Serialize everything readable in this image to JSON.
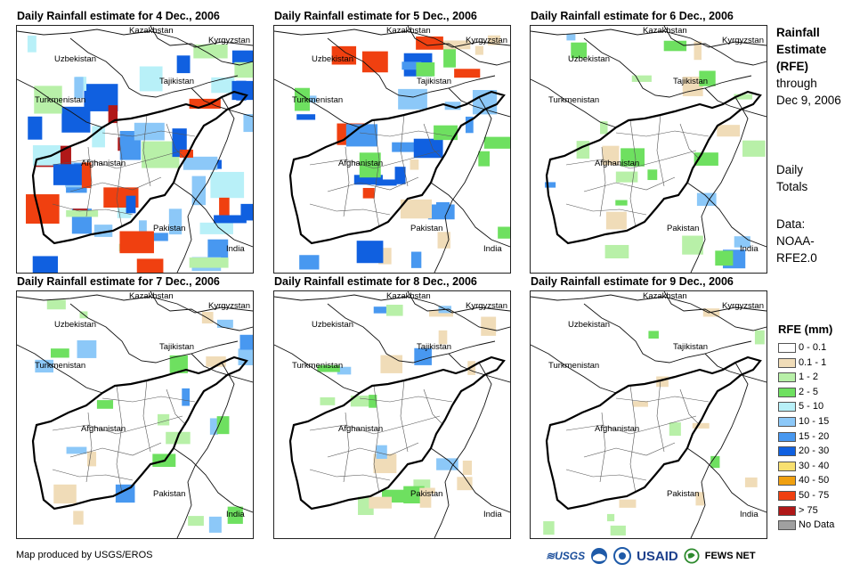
{
  "panels": [
    {
      "title": "Daily Rainfall estimate for 4 Dec., 2006",
      "intensity": 3
    },
    {
      "title": "Daily Rainfall estimate for 5 Dec., 2006",
      "intensity": 2
    },
    {
      "title": "Daily Rainfall estimate for 6 Dec., 2006",
      "intensity": 1
    },
    {
      "title": "Daily Rainfall estimate for 7 Dec., 2006",
      "intensity": 1
    },
    {
      "title": "Daily Rainfall estimate for 8 Dec., 2006",
      "intensity": 1
    },
    {
      "title": "Daily Rainfall estimate for 9 Dec., 2006",
      "intensity": 0
    }
  ],
  "map_labels": {
    "kazakhstan": "Kazakhstan",
    "kyrgyzstan": "Kyrgyzstan",
    "uzbekistan": "Uzbekistan",
    "tajikistan": "Tajikistan",
    "turkmenistan": "Turkmenistan",
    "afghanistan": "Afghanistan",
    "pakistan": "Pakistan",
    "india": "India"
  },
  "side": {
    "title_lines": [
      "Rainfall",
      "Estimate",
      "(RFE)"
    ],
    "through": "through",
    "date": "Dec 9, 2006",
    "totals_1": "Daily",
    "totals_2": "Totals",
    "data_label": "Data:",
    "data_1": "NOAA-",
    "data_2": "RFE2.0"
  },
  "legend": {
    "title": "RFE (mm)",
    "items": [
      {
        "label": "0 - 0.1",
        "color": "#ffffff"
      },
      {
        "label": "0.1 - 1",
        "color": "#f0dcb8"
      },
      {
        "label": "1 - 2",
        "color": "#b8f0a8"
      },
      {
        "label": "2 - 5",
        "color": "#6ee060"
      },
      {
        "label": "5 - 10",
        "color": "#b8f0f8"
      },
      {
        "label": "10 - 15",
        "color": "#8cc8f8"
      },
      {
        "label": "15 - 20",
        "color": "#4898f0"
      },
      {
        "label": "20 - 30",
        "color": "#1060e0"
      },
      {
        "label": "30 - 40",
        "color": "#f8e070"
      },
      {
        "label": "40 - 50",
        "color": "#f0a010"
      },
      {
        "label": "50 - 75",
        "color": "#f04010"
      },
      {
        "label": "> 75",
        "color": "#b01818"
      },
      {
        "label": "No Data",
        "color": "#a0a0a0"
      }
    ]
  },
  "footer": "Map produced by USGS/EROS",
  "logos": {
    "usgs": "USGS",
    "usaid": "USAID",
    "fews": "FEWS NET"
  }
}
